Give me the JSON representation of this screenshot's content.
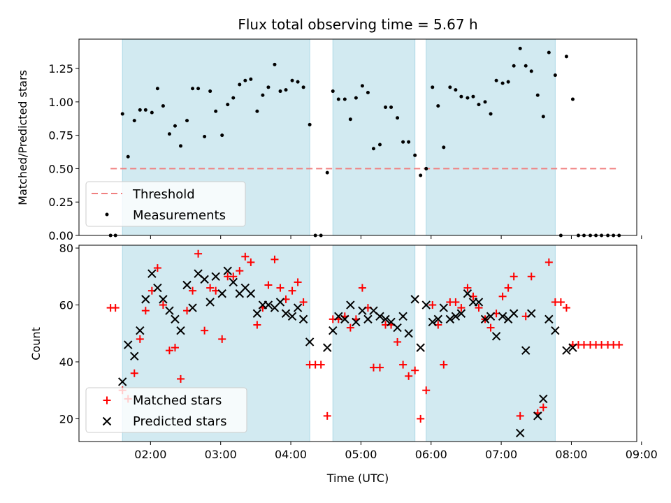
{
  "title": "Flux total observing time = 5.67 h",
  "colors": {
    "band": "#add8e6",
    "threshold": "#f08080",
    "matched": "#ff0000",
    "predicted": "#000000",
    "measure": "#000000"
  },
  "chart_data": [
    {
      "type": "scatter",
      "ylabel": "Matched/Predicted stars",
      "ylim": [
        0,
        1.47
      ],
      "yticks": [
        "0.00",
        "0.25",
        "0.50",
        "0.75",
        "1.00",
        "1.25"
      ],
      "xlim": [
        1.0,
        9.0
      ],
      "bands": [
        [
          1.6,
          4.27
        ],
        [
          4.6,
          5.77
        ],
        [
          5.93,
          7.77
        ]
      ],
      "threshold": {
        "value": 0.5,
        "x": [
          1.43,
          8.67
        ]
      },
      "legend": {
        "entries": [
          "Threshold",
          "Measurements"
        ],
        "position": "lower left"
      },
      "series": [
        {
          "name": "Measurements",
          "points": [
            [
              1.43,
              0.0
            ],
            [
              1.5,
              0.0
            ],
            [
              1.6,
              0.91
            ],
            [
              1.68,
              0.59
            ],
            [
              1.77,
              0.86
            ],
            [
              1.85,
              0.94
            ],
            [
              1.93,
              0.94
            ],
            [
              2.02,
              0.92
            ],
            [
              2.1,
              1.1
            ],
            [
              2.18,
              0.97
            ],
            [
              2.27,
              0.76
            ],
            [
              2.35,
              0.82
            ],
            [
              2.43,
              0.67
            ],
            [
              2.52,
              0.86
            ],
            [
              2.6,
              1.1
            ],
            [
              2.68,
              1.1
            ],
            [
              2.77,
              0.74
            ],
            [
              2.85,
              1.08
            ],
            [
              2.93,
              0.93
            ],
            [
              3.02,
              0.75
            ],
            [
              3.1,
              0.98
            ],
            [
              3.18,
              1.03
            ],
            [
              3.27,
              1.13
            ],
            [
              3.35,
              1.16
            ],
            [
              3.43,
              1.17
            ],
            [
              3.52,
              0.93
            ],
            [
              3.6,
              1.05
            ],
            [
              3.68,
              1.11
            ],
            [
              3.77,
              1.28
            ],
            [
              3.85,
              1.08
            ],
            [
              3.93,
              1.09
            ],
            [
              4.02,
              1.16
            ],
            [
              4.1,
              1.15
            ],
            [
              4.18,
              1.11
            ],
            [
              4.27,
              0.83
            ],
            [
              4.35,
              0.0
            ],
            [
              4.43,
              0.0
            ],
            [
              4.52,
              0.47
            ],
            [
              4.6,
              1.08
            ],
            [
              4.68,
              1.02
            ],
            [
              4.77,
              1.02
            ],
            [
              4.85,
              0.87
            ],
            [
              4.93,
              1.03
            ],
            [
              5.02,
              1.12
            ],
            [
              5.1,
              1.07
            ],
            [
              5.18,
              0.65
            ],
            [
              5.27,
              0.68
            ],
            [
              5.35,
              0.96
            ],
            [
              5.43,
              0.96
            ],
            [
              5.52,
              0.88
            ],
            [
              5.6,
              0.7
            ],
            [
              5.68,
              0.7
            ],
            [
              5.77,
              0.6
            ],
            [
              5.85,
              0.45
            ],
            [
              5.93,
              0.5
            ],
            [
              6.02,
              1.11
            ],
            [
              6.1,
              0.97
            ],
            [
              6.18,
              0.66
            ],
            [
              6.27,
              1.11
            ],
            [
              6.35,
              1.09
            ],
            [
              6.43,
              1.04
            ],
            [
              6.52,
              1.03
            ],
            [
              6.6,
              1.04
            ],
            [
              6.68,
              0.98
            ],
            [
              6.77,
              1.0
            ],
            [
              6.85,
              0.91
            ],
            [
              6.93,
              1.16
            ],
            [
              7.02,
              1.14
            ],
            [
              7.1,
              1.15
            ],
            [
              7.18,
              1.27
            ],
            [
              7.27,
              1.4
            ],
            [
              7.35,
              1.27
            ],
            [
              7.43,
              1.23
            ],
            [
              7.52,
              1.05
            ],
            [
              7.6,
              0.89
            ],
            [
              7.68,
              1.37
            ],
            [
              7.77,
              1.2
            ],
            [
              7.85,
              0.0
            ],
            [
              7.93,
              1.34
            ],
            [
              8.02,
              1.02
            ],
            [
              8.1,
              0.0
            ],
            [
              8.18,
              0.0
            ],
            [
              8.27,
              0.0
            ],
            [
              8.35,
              0.0
            ],
            [
              8.43,
              0.0
            ],
            [
              8.52,
              0.0
            ],
            [
              8.6,
              0.0
            ],
            [
              8.68,
              0.0
            ]
          ]
        }
      ]
    },
    {
      "type": "scatter",
      "ylabel": "Count",
      "xlabel": "Time (UTC)",
      "ylim": [
        12,
        81
      ],
      "yticks": [
        "20",
        "40",
        "60",
        "80"
      ],
      "xlim": [
        1.0,
        9.0
      ],
      "xticks": [
        "02:00",
        "03:00",
        "04:00",
        "05:00",
        "06:00",
        "07:00",
        "08:00",
        "09:00"
      ],
      "bands": [
        [
          1.6,
          4.27
        ],
        [
          4.6,
          5.77
        ],
        [
          5.93,
          7.77
        ]
      ],
      "legend": {
        "entries": [
          "Matched stars",
          "Predicted stars"
        ],
        "position": "lower left"
      },
      "series": [
        {
          "name": "Matched stars",
          "points": [
            [
              1.43,
              59
            ],
            [
              1.5,
              59
            ],
            [
              1.6,
              30
            ],
            [
              1.68,
              27
            ],
            [
              1.77,
              36
            ],
            [
              1.85,
              48
            ],
            [
              1.93,
              58
            ],
            [
              2.02,
              65
            ],
            [
              2.1,
              73
            ],
            [
              2.18,
              60
            ],
            [
              2.27,
              44
            ],
            [
              2.35,
              45
            ],
            [
              2.43,
              34
            ],
            [
              2.52,
              58
            ],
            [
              2.6,
              65
            ],
            [
              2.68,
              78
            ],
            [
              2.77,
              51
            ],
            [
              2.85,
              66
            ],
            [
              2.93,
              65
            ],
            [
              3.02,
              48
            ],
            [
              3.1,
              70
            ],
            [
              3.18,
              70
            ],
            [
              3.27,
              72
            ],
            [
              3.35,
              77
            ],
            [
              3.43,
              75
            ],
            [
              3.52,
              53
            ],
            [
              3.6,
              59
            ],
            [
              3.68,
              67
            ],
            [
              3.77,
              76
            ],
            [
              3.85,
              66
            ],
            [
              3.93,
              62
            ],
            [
              4.02,
              65
            ],
            [
              4.1,
              68
            ],
            [
              4.18,
              61
            ],
            [
              4.27,
              39
            ],
            [
              4.35,
              39
            ],
            [
              4.43,
              39
            ],
            [
              4.52,
              21
            ],
            [
              4.6,
              55
            ],
            [
              4.68,
              55
            ],
            [
              4.77,
              56
            ],
            [
              4.85,
              52
            ],
            [
              4.93,
              55
            ],
            [
              5.02,
              66
            ],
            [
              5.1,
              59
            ],
            [
              5.18,
              38
            ],
            [
              5.27,
              38
            ],
            [
              5.35,
              53
            ],
            [
              5.43,
              53
            ],
            [
              5.52,
              47
            ],
            [
              5.6,
              39
            ],
            [
              5.68,
              35
            ],
            [
              5.77,
              37
            ],
            [
              5.85,
              20
            ],
            [
              5.93,
              30
            ],
            [
              6.02,
              60
            ],
            [
              6.1,
              53
            ],
            [
              6.18,
              39
            ],
            [
              6.27,
              61
            ],
            [
              6.35,
              61
            ],
            [
              6.43,
              59
            ],
            [
              6.52,
              66
            ],
            [
              6.6,
              63
            ],
            [
              6.68,
              59
            ],
            [
              6.77,
              55
            ],
            [
              6.85,
              52
            ],
            [
              6.93,
              57
            ],
            [
              7.02,
              63
            ],
            [
              7.1,
              66
            ],
            [
              7.18,
              70
            ],
            [
              7.27,
              21
            ],
            [
              7.35,
              56
            ],
            [
              7.43,
              70
            ],
            [
              7.52,
              22
            ],
            [
              7.6,
              24
            ],
            [
              7.68,
              75
            ],
            [
              7.77,
              61
            ],
            [
              7.85,
              61
            ],
            [
              7.93,
              59
            ],
            [
              8.02,
              46
            ],
            [
              8.1,
              46
            ],
            [
              8.18,
              46
            ],
            [
              8.27,
              46
            ],
            [
              8.35,
              46
            ],
            [
              8.43,
              46
            ],
            [
              8.52,
              46
            ],
            [
              8.6,
              46
            ],
            [
              8.68,
              46
            ]
          ]
        },
        {
          "name": "Predicted stars",
          "points": [
            [
              1.6,
              33
            ],
            [
              1.68,
              46
            ],
            [
              1.77,
              42
            ],
            [
              1.85,
              51
            ],
            [
              1.93,
              62
            ],
            [
              2.02,
              71
            ],
            [
              2.1,
              66
            ],
            [
              2.18,
              62
            ],
            [
              2.27,
              58
            ],
            [
              2.35,
              55
            ],
            [
              2.43,
              51
            ],
            [
              2.52,
              67
            ],
            [
              2.6,
              59
            ],
            [
              2.68,
              71
            ],
            [
              2.77,
              69
            ],
            [
              2.85,
              61
            ],
            [
              2.93,
              70
            ],
            [
              3.02,
              64
            ],
            [
              3.1,
              72
            ],
            [
              3.18,
              68
            ],
            [
              3.27,
              64
            ],
            [
              3.35,
              66
            ],
            [
              3.43,
              64
            ],
            [
              3.52,
              57
            ],
            [
              3.6,
              60
            ],
            [
              3.68,
              60
            ],
            [
              3.77,
              59
            ],
            [
              3.85,
              61
            ],
            [
              3.93,
              57
            ],
            [
              4.02,
              56
            ],
            [
              4.1,
              59
            ],
            [
              4.18,
              55
            ],
            [
              4.27,
              47
            ],
            [
              4.52,
              45
            ],
            [
              4.6,
              51
            ],
            [
              4.68,
              56
            ],
            [
              4.77,
              55
            ],
            [
              4.85,
              60
            ],
            [
              4.93,
              54
            ],
            [
              5.02,
              58
            ],
            [
              5.1,
              55
            ],
            [
              5.18,
              58
            ],
            [
              5.27,
              56
            ],
            [
              5.35,
              55
            ],
            [
              5.43,
              54
            ],
            [
              5.52,
              52
            ],
            [
              5.6,
              56
            ],
            [
              5.68,
              50
            ],
            [
              5.77,
              62
            ],
            [
              5.85,
              45
            ],
            [
              5.93,
              60
            ],
            [
              6.02,
              54
            ],
            [
              6.1,
              55
            ],
            [
              6.18,
              59
            ],
            [
              6.27,
              55
            ],
            [
              6.35,
              56
            ],
            [
              6.43,
              57
            ],
            [
              6.52,
              64
            ],
            [
              6.6,
              61
            ],
            [
              6.68,
              61
            ],
            [
              6.77,
              55
            ],
            [
              6.85,
              56
            ],
            [
              6.93,
              49
            ],
            [
              7.02,
              56
            ],
            [
              7.1,
              55
            ],
            [
              7.18,
              57
            ],
            [
              7.27,
              15
            ],
            [
              7.35,
              44
            ],
            [
              7.43,
              57
            ],
            [
              7.52,
              21
            ],
            [
              7.6,
              27
            ],
            [
              7.68,
              55
            ],
            [
              7.77,
              51
            ],
            [
              7.93,
              44
            ],
            [
              8.02,
              45
            ]
          ]
        }
      ]
    }
  ]
}
